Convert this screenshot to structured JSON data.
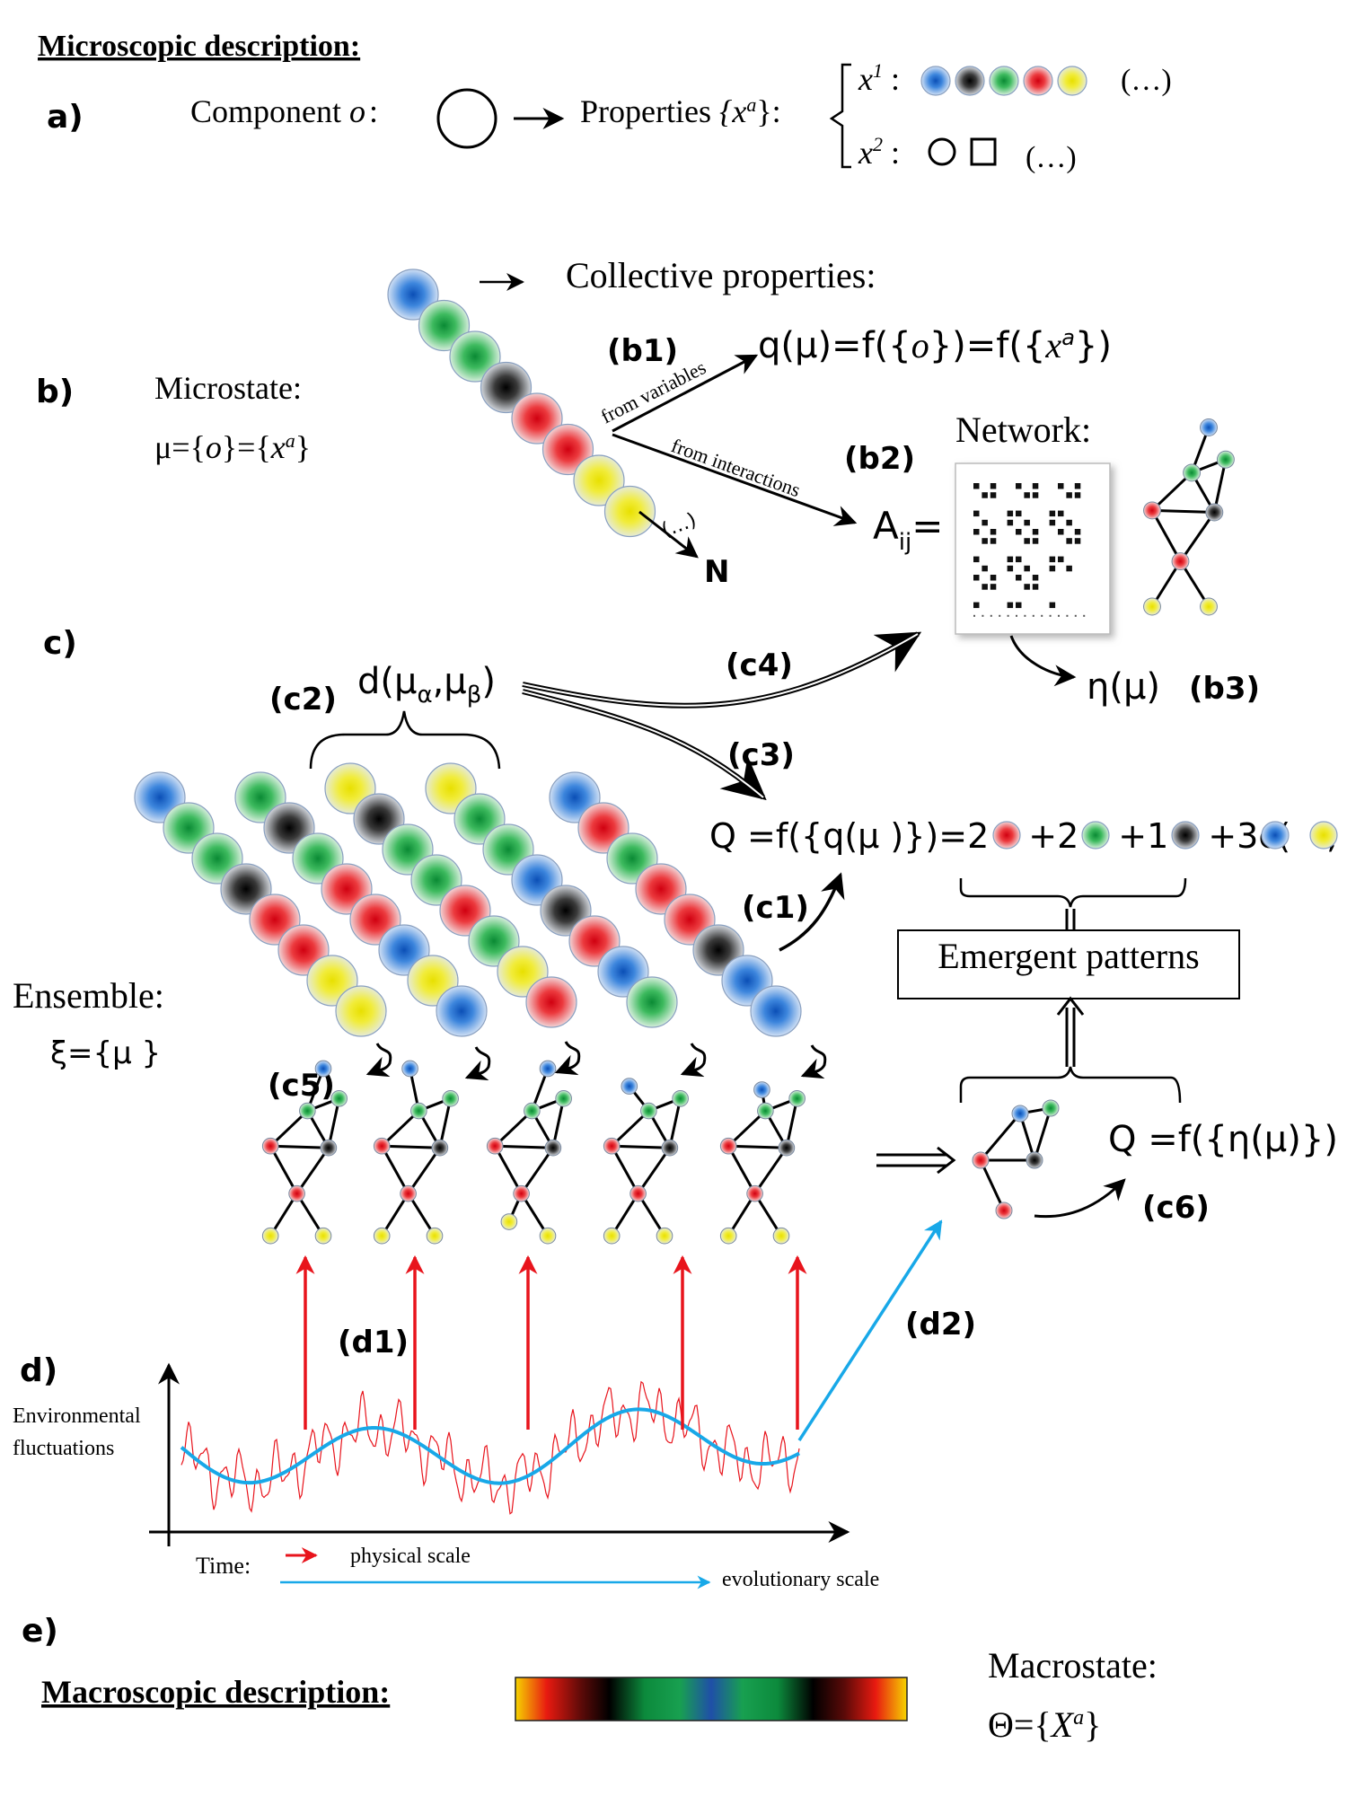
{
  "header": {
    "title": "Microscopic description:"
  },
  "panel_a": {
    "label": "a)",
    "component_text": "Component ",
    "component_symbol": "o",
    "colon": ":",
    "properties_text": "Properties ",
    "properties_set": "{x",
    "properties_sup": "a",
    "properties_end": "}:",
    "x1_label": "x",
    "x1_sup": "1",
    "x2_label": "x",
    "x2_sup": "2",
    "x1_colors": [
      "blue",
      "black",
      "green",
      "red",
      "yellow"
    ],
    "x1_more": "(…)",
    "x2_more": "(…)"
  },
  "panel_b": {
    "label": "b)",
    "microstate_title": "Microstate:",
    "microstate_eq_mu": "μ={",
    "microstate_eq_o": "o",
    "microstate_eq_mid": "}={",
    "microstate_eq_x": "x",
    "microstate_eq_sup": "a",
    "microstate_eq_end": "}",
    "chain_colors": [
      "blue",
      "green",
      "green",
      "black",
      "red",
      "red",
      "yellow",
      "yellow"
    ],
    "ellipsis": "(…)",
    "n_label": "N",
    "collective_title": "Collective properties:",
    "b1": "(b1)",
    "b1_eq_pre": "q(μ)=f({",
    "b1_eq_o": "o",
    "b1_eq_mid": "})=f({",
    "b1_eq_x": "x",
    "b1_eq_sup": "a",
    "b1_eq_end": "})",
    "from_variables": "from variables",
    "from_interactions": "from interactions",
    "b2": "(b2)",
    "network_title": "Network:",
    "aij": "A",
    "aij_sub": "ij",
    "aij_eq": "=",
    "b3": "(b3)",
    "eta": "η(μ)"
  },
  "panel_c": {
    "label": "c)",
    "c1": "(c1)",
    "c2": "(c2)",
    "c3": "(c3)",
    "c4": "(c4)",
    "c5": "(c5)",
    "c6": "(c6)",
    "distance_pre": "d(μ",
    "distance_sub1": "α",
    "distance_mid": ",μ",
    "distance_sub2": "β",
    "distance_end": ")",
    "Q_pre": "Q =f({q(μ )})=2",
    "Q_t2": "+2",
    "Q_t3": "+1",
    "Q_t4": "+3c(",
    "Q_t5": ",",
    "Q_t6": ")",
    "emergent": "Emergent patterns",
    "ensemble_title": "Ensemble:",
    "ensemble_eq": "ξ={μ }",
    "Q_eta": "Q =f({η(μ)})",
    "chains": [
      [
        "blue",
        "green",
        "green",
        "black",
        "red",
        "red",
        "yellow",
        "yellow"
      ],
      [
        "green",
        "black",
        "green",
        "red",
        "red",
        "blue",
        "yellow",
        "blue"
      ],
      [
        "yellow",
        "black",
        "green",
        "green",
        "red",
        "green",
        "yellow",
        "red"
      ],
      [
        "yellow",
        "green",
        "green",
        "blue",
        "black",
        "red",
        "blue",
        "green"
      ],
      [
        "blue",
        "red",
        "green",
        "red",
        "red",
        "black",
        "blue",
        "blue"
      ]
    ]
  },
  "panel_d": {
    "label": "d)",
    "d1": "(d1)",
    "d2": "(d2)",
    "y_label_1": "Environmental",
    "y_label_2": "fluctuations",
    "time_label": "Time:",
    "physical_scale": "physical scale",
    "evolutionary_scale": "evolutionary scale"
  },
  "panel_e": {
    "label": "e)",
    "macro_desc": "Macroscopic description:",
    "macrostate_title": "Macrostate:",
    "macrostate_pre": "Θ={",
    "macrostate_x": "X",
    "macrostate_sup": "a",
    "macrostate_end": "}"
  },
  "colors": {
    "blue": "#1a6fd6",
    "black": "#111111",
    "green": "#1aa64a",
    "red": "#e4141c",
    "yellow": "#f4f01a",
    "physical": "#e8141c",
    "evolutionary": "#18a8e8"
  }
}
